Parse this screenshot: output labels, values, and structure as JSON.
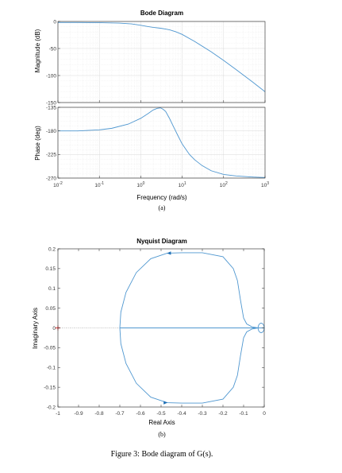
{
  "chart_data": [
    {
      "type": "line",
      "title": "Bode Diagram",
      "xlabel": "Frequency  (rad/s)",
      "xscale": "log",
      "xlim": [
        0.01,
        1000
      ],
      "x_ticks": [
        "10",
        "10",
        "10",
        "10",
        "10",
        "10"
      ],
      "x_tick_exponents": [
        "-2",
        "-1",
        "0",
        "1",
        "2",
        "3"
      ],
      "x_tick_values": [
        0.01,
        0.1,
        1,
        10,
        100,
        1000
      ],
      "grid": true,
      "panels": [
        {
          "ylabel": "Magnitude (dB)",
          "ylim": [
            -150,
            0
          ],
          "y_ticks": [
            "0",
            "-50",
            "-100",
            "-150"
          ],
          "y_tick_values": [
            0,
            -50,
            -100,
            -150
          ],
          "series": [
            {
              "color": "#4f97d0",
              "x": [
                0.01,
                0.03,
                0.1,
                0.3,
                0.6,
                1,
                1.5,
                2,
                3,
                4,
                5,
                7,
                10,
                20,
                50,
                100,
                200,
                500,
                1000
              ],
              "y": [
                -2,
                -2,
                -2.3,
                -3,
                -4.5,
                -7,
                -9.5,
                -11,
                -12.5,
                -14,
                -15.5,
                -19,
                -24,
                -37,
                -56,
                -72,
                -89,
                -112,
                -130
              ]
            }
          ]
        },
        {
          "ylabel": "Phase (deg)",
          "ylim": [
            -270,
            -135
          ],
          "y_ticks": [
            "-135",
            "-180",
            "-225",
            "-270"
          ],
          "y_tick_values": [
            -135,
            -180,
            -225,
            -270
          ],
          "series": [
            {
              "color": "#4f97d0",
              "x": [
                0.01,
                0.03,
                0.1,
                0.2,
                0.5,
                1,
                1.5,
                2,
                2.5,
                3,
                3.5,
                4,
                5,
                6,
                8,
                10,
                15,
                20,
                30,
                50,
                100,
                200,
                500,
                1000
              ],
              "y": [
                -180,
                -180,
                -178,
                -175,
                -167,
                -156,
                -147,
                -140,
                -137,
                -136,
                -139,
                -143,
                -157,
                -170,
                -190,
                -205,
                -225,
                -235,
                -246,
                -256,
                -263,
                -266,
                -268,
                -269
              ]
            }
          ]
        }
      ],
      "sublabel": "(a)"
    },
    {
      "type": "line",
      "title": "Nyquist Diagram",
      "xlabel": "Real Axis",
      "ylabel": "Imaginary Axis",
      "xlim": [
        -1,
        0
      ],
      "ylim": [
        -0.2,
        0.2
      ],
      "x_ticks": [
        "-1",
        "-0.9",
        "-0.8",
        "-0.7",
        "-0.6",
        "-0.5",
        "-0.4",
        "-0.3",
        "-0.2",
        "-0.1",
        "0"
      ],
      "x_tick_values": [
        -1,
        -0.9,
        -0.8,
        -0.7,
        -0.6,
        -0.5,
        -0.4,
        -0.3,
        -0.2,
        -0.1,
        0
      ],
      "y_ticks": [
        "0.2",
        "0.15",
        "0.1",
        "0.05",
        "0",
        "-0.05",
        "-0.1",
        "-0.15",
        "-0.2"
      ],
      "y_tick_values": [
        0.2,
        0.15,
        0.1,
        0.05,
        0,
        -0.05,
        -0.1,
        -0.15,
        -0.2
      ],
      "critical_point": [
        -1,
        0
      ],
      "series": [
        {
          "color": "#4f97d0",
          "x": [
            -0.03,
            -0.06,
            -0.085,
            -0.1,
            -0.115,
            -0.13,
            -0.15,
            -0.2,
            -0.3,
            -0.4,
            -0.47,
            -0.55,
            -0.62,
            -0.67,
            -0.695,
            -0.7
          ],
          "y": [
            0.0,
            0.003,
            0.01,
            0.025,
            0.07,
            0.12,
            0.15,
            0.18,
            0.19,
            0.19,
            0.189,
            0.175,
            0.14,
            0.09,
            0.04,
            0.0
          ],
          "mirror": true
        }
      ],
      "arrows": [
        {
          "x": -0.46,
          "y": 0.189,
          "dir": "left"
        },
        {
          "x": -0.48,
          "y": -0.189,
          "dir": "right"
        }
      ],
      "sublabel": "(b)"
    }
  ],
  "caption": "Figure 3: Bode diagram of G(s)."
}
